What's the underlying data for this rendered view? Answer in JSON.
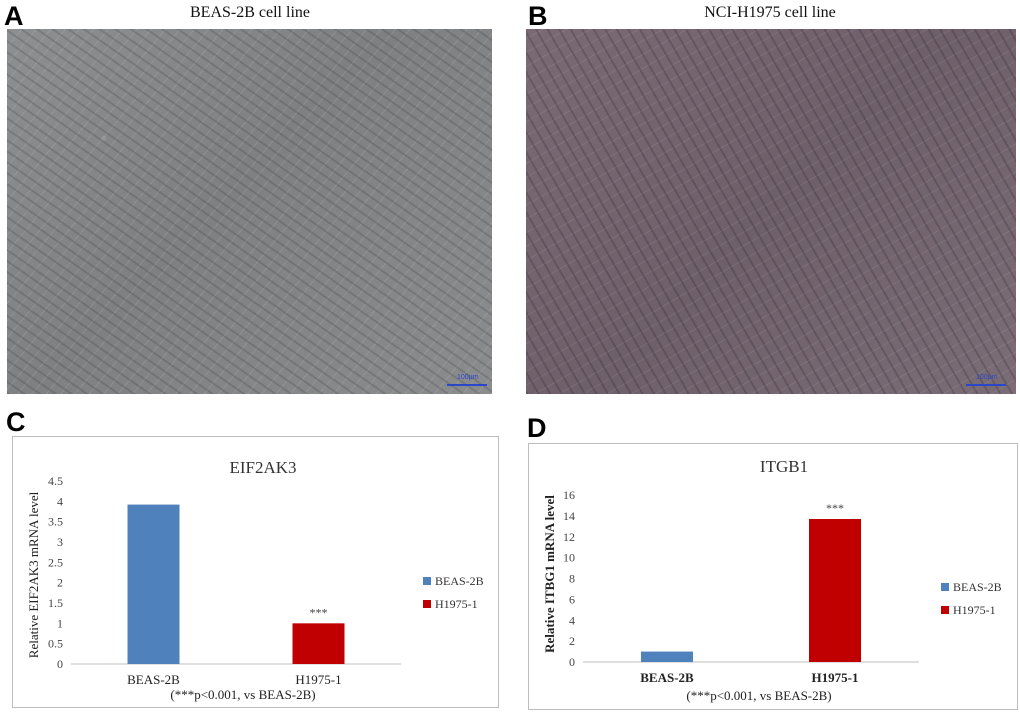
{
  "panels": {
    "a": {
      "letter": "A",
      "title": "BEAS-2B cell line",
      "scale": "100μm"
    },
    "b": {
      "letter": "B",
      "title": "NCI-H1975 cell line",
      "scale": "100μm"
    },
    "c": {
      "letter": "C"
    },
    "d": {
      "letter": "D"
    }
  },
  "chart_data": [
    {
      "type": "bar",
      "title": "EIF2AK3",
      "categories": [
        "BEAS-2B",
        "H1975-1"
      ],
      "series": [
        {
          "name": "BEAS-2B",
          "color": "#4f81bd",
          "values": [
            3.92,
            null
          ]
        },
        {
          "name": "H1975-1",
          "color": "#c00000",
          "values": [
            null,
            1.0
          ]
        }
      ],
      "values": [
        3.92,
        1.0
      ],
      "annotations": [
        "",
        "***"
      ],
      "xlabel": "(***p<0.001, vs BEAS-2B)",
      "ylabel": "Relative EIF2AK3 mRNA level",
      "ylim": [
        0,
        4.5
      ],
      "yticks": [
        "0",
        "0.5",
        "1",
        "1.5",
        "2",
        "2.5",
        "3",
        "3.5",
        "4",
        "4.5"
      ],
      "legend": "right",
      "bold_ticks": false
    },
    {
      "type": "bar",
      "title": "ITGB1",
      "categories": [
        "BEAS-2B",
        "H1975-1"
      ],
      "series": [
        {
          "name": "BEAS-2B",
          "color": "#4f81bd",
          "values": [
            1.0,
            null
          ]
        },
        {
          "name": "H1975-1",
          "color": "#c00000",
          "values": [
            null,
            13.7
          ]
        }
      ],
      "values": [
        1.0,
        13.7
      ],
      "annotations": [
        "",
        "***"
      ],
      "xlabel": "(***p<0.001, vs BEAS-2B)",
      "ylabel": "Relative ITBG1 mRNA  level",
      "ylim": [
        0,
        16
      ],
      "yticks": [
        "0",
        "2",
        "4",
        "6",
        "8",
        "10",
        "12",
        "14",
        "16"
      ],
      "legend": "right",
      "bold_ticks": true
    }
  ]
}
